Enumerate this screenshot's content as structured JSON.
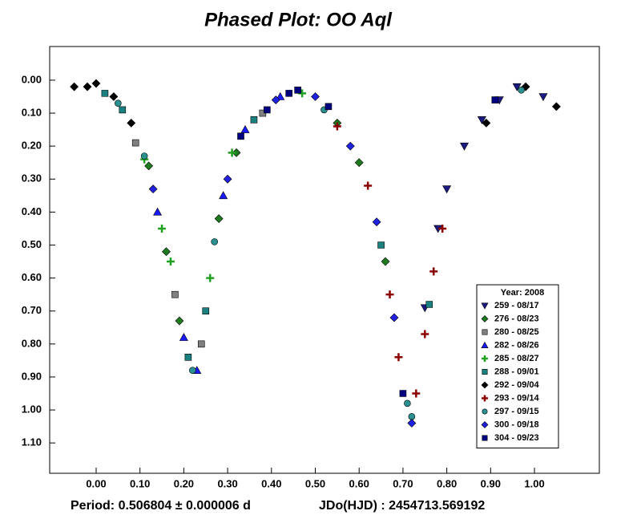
{
  "chart_data": {
    "type": "scatter",
    "title": "Phased Plot: OO Aql",
    "footer_left": "Period: 0.506804 ± 0.000006 d",
    "footer_right": "JDo(HJD) : 2454713.569192",
    "legend_title": "Year: 2008",
    "legend": "lower right",
    "xlim": [
      -0.106,
      1.148
    ],
    "ylim": [
      -0.102,
      1.192
    ],
    "y_inverted": true,
    "xticks": [
      {
        "value": 0,
        "label": "0.00"
      },
      {
        "value": 0.1,
        "label": "0.10"
      },
      {
        "value": 0.2,
        "label": "0.20"
      },
      {
        "value": 0.3,
        "label": "0.30"
      },
      {
        "value": 0.4,
        "label": "0.40"
      },
      {
        "value": 0.5,
        "label": "0.50"
      },
      {
        "value": 0.6,
        "label": "0.60"
      },
      {
        "value": 0.7,
        "label": "0.70"
      },
      {
        "value": 0.8,
        "label": "0.80"
      },
      {
        "value": 0.9,
        "label": "0.90"
      },
      {
        "value": 1,
        "label": "1.00"
      }
    ],
    "yticks": [
      {
        "value": 0,
        "label": "0.00"
      },
      {
        "value": 0.1,
        "label": "0.10"
      },
      {
        "value": 0.2,
        "label": "0.20"
      },
      {
        "value": 0.3,
        "label": "0.30"
      },
      {
        "value": 0.4,
        "label": "0.40"
      },
      {
        "value": 0.5,
        "label": "0.50"
      },
      {
        "value": 0.6,
        "label": "0.60"
      },
      {
        "value": 0.7,
        "label": "0.70"
      },
      {
        "value": 0.8,
        "label": "0.80"
      },
      {
        "value": 0.9,
        "label": "0.90"
      },
      {
        "value": 1,
        "label": "1.00"
      },
      {
        "value": 1.1,
        "label": "1.10"
      }
    ],
    "series": [
      {
        "name": "259 - 08/17",
        "color": "#1a1a80",
        "marker": "triangle-down",
        "x": [
          0.75,
          0.78,
          0.8,
          0.84,
          0.88,
          0.92,
          0.96,
          1.02
        ],
        "values": [
          0.69,
          0.45,
          0.33,
          0.2,
          0.12,
          0.06,
          0.02,
          0.05
        ]
      },
      {
        "name": "276 - 08/23",
        "color": "#1e7a1e",
        "marker": "diamond",
        "x": [
          0.12,
          0.16,
          0.19,
          0.28,
          0.32,
          0.55,
          0.6,
          0.66
        ],
        "values": [
          0.26,
          0.52,
          0.73,
          0.42,
          0.22,
          0.13,
          0.25,
          0.55
        ]
      },
      {
        "name": "280 - 08/25",
        "color": "#808080",
        "marker": "square",
        "x": [
          0.09,
          0.18,
          0.24,
          0.38
        ],
        "values": [
          0.19,
          0.65,
          0.8,
          0.1
        ]
      },
      {
        "name": "282 - 08/26",
        "color": "#1a1aff",
        "marker": "triangle-up",
        "x": [
          0.14,
          0.2,
          0.23,
          0.29,
          0.34,
          0.42
        ],
        "values": [
          0.4,
          0.78,
          0.88,
          0.35,
          0.15,
          0.05
        ]
      },
      {
        "name": "285 - 08/27",
        "color": "#20a020",
        "marker": "plus",
        "x": [
          0.11,
          0.15,
          0.17,
          0.26,
          0.31,
          0.47
        ],
        "values": [
          0.24,
          0.45,
          0.55,
          0.6,
          0.22,
          0.04
        ]
      },
      {
        "name": "288 - 09/01",
        "color": "#1a8080",
        "marker": "square",
        "x": [
          0.02,
          0.06,
          0.21,
          0.25,
          0.36,
          0.65,
          0.76
        ],
        "values": [
          0.04,
          0.09,
          0.84,
          0.7,
          0.12,
          0.5,
          0.68
        ]
      },
      {
        "name": "292 - 09/04",
        "color": "#000000",
        "marker": "diamond",
        "x": [
          -0.05,
          -0.02,
          0.0,
          0.04,
          0.08,
          0.89,
          0.98,
          1.05
        ],
        "values": [
          0.02,
          0.02,
          0.01,
          0.05,
          0.13,
          0.13,
          0.02,
          0.08
        ]
      },
      {
        "name": "293 - 09/14",
        "color": "#8b0000",
        "marker": "plus",
        "x": [
          0.55,
          0.62,
          0.67,
          0.69,
          0.73,
          0.75,
          0.77,
          0.79
        ],
        "values": [
          0.14,
          0.32,
          0.65,
          0.84,
          0.95,
          0.77,
          0.58,
          0.45
        ]
      },
      {
        "name": "297 - 09/15",
        "color": "#2a9090",
        "marker": "circle",
        "x": [
          0.05,
          0.11,
          0.22,
          0.27,
          0.52,
          0.71,
          0.72,
          0.97
        ],
        "values": [
          0.07,
          0.23,
          0.88,
          0.49,
          0.09,
          0.98,
          1.02,
          0.03
        ]
      },
      {
        "name": "300 - 09/18",
        "color": "#2020e0",
        "marker": "diamond",
        "x": [
          0.13,
          0.3,
          0.41,
          0.5,
          0.58,
          0.64,
          0.68,
          0.72
        ],
        "values": [
          0.33,
          0.3,
          0.06,
          0.05,
          0.2,
          0.43,
          0.72,
          1.04
        ]
      },
      {
        "name": "304 - 09/23",
        "color": "#000080",
        "marker": "square",
        "x": [
          0.33,
          0.39,
          0.44,
          0.46,
          0.53,
          0.7,
          0.91
        ],
        "values": [
          0.17,
          0.09,
          0.04,
          0.03,
          0.08,
          0.95,
          0.06
        ]
      }
    ]
  }
}
